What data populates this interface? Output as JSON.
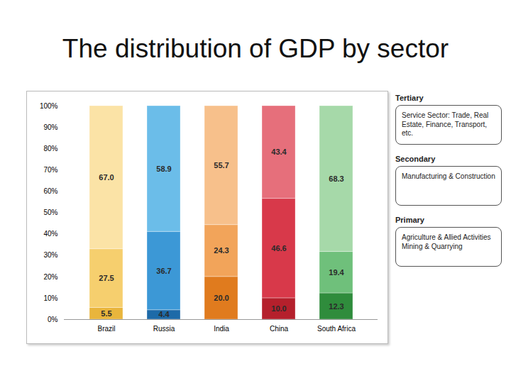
{
  "chart_data": {
    "type": "bar",
    "title": "The distribution of GDP by sector",
    "categories": [
      "Brazil",
      "Russia",
      "India",
      "China",
      "South Africa"
    ],
    "series": [
      {
        "name": "Primary",
        "description": "Agriculture & Allied Activities Mining & Quarrying",
        "values": [
          5.5,
          4.4,
          20.0,
          10.0,
          12.3
        ],
        "value_labels": [
          "5.5",
          "4.4",
          "20.0",
          "10.0",
          "12.3"
        ],
        "colors": [
          "#e9b53c",
          "#1d6aa8",
          "#e07b1e",
          "#b5202c",
          "#2f8c3c"
        ]
      },
      {
        "name": "Secondary",
        "description": "Manufacturing & Construction",
        "values": [
          27.5,
          36.7,
          24.3,
          46.6,
          19.4
        ],
        "value_labels": [
          "27.5",
          "36.7",
          "24.3",
          "46.6",
          "19.4"
        ],
        "colors": [
          "#f6cf6e",
          "#3c98d6",
          "#f2a45a",
          "#d8394a",
          "#6fc07b"
        ]
      },
      {
        "name": "Tertiary",
        "description": "Service Sector: Trade, Real Estate, Finance, Transport, etc.",
        "values": [
          67.0,
          58.9,
          55.7,
          43.4,
          68.3
        ],
        "value_labels": [
          "67.0",
          "58.9",
          "55.7",
          "43.4",
          "68.3"
        ],
        "colors": [
          "#fbe3a6",
          "#6bbde9",
          "#f7c08b",
          "#e66f7b",
          "#a6d9a9"
        ]
      }
    ],
    "ylim": [
      0,
      100
    ],
    "yticks": [
      {
        "value": 0,
        "label": "0%"
      },
      {
        "value": 10,
        "label": "10%"
      },
      {
        "value": 20,
        "label": "20%"
      },
      {
        "value": 30,
        "label": "30%"
      },
      {
        "value": 40,
        "label": "40%"
      },
      {
        "value": 50,
        "label": "50%"
      },
      {
        "value": 60,
        "label": "60%"
      },
      {
        "value": 70,
        "label": "70%"
      },
      {
        "value": 80,
        "label": "80%"
      },
      {
        "value": 90,
        "label": "90%"
      },
      {
        "value": 100,
        "label": "100%"
      }
    ],
    "stacked": true,
    "data_labels": true,
    "grid": false,
    "legend": "right"
  }
}
